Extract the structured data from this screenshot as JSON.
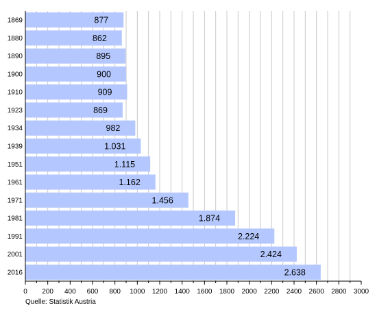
{
  "chart_data": {
    "type": "bar",
    "orientation": "horizontal",
    "categories": [
      "1869",
      "1880",
      "1890",
      "1900",
      "1910",
      "1923",
      "1934",
      "1939",
      "1951",
      "1961",
      "1971",
      "1981",
      "1991",
      "2001",
      "2016"
    ],
    "values": [
      877,
      862,
      895,
      900,
      909,
      869,
      982,
      1031,
      1115,
      1162,
      1456,
      1874,
      2224,
      2424,
      2638
    ],
    "value_labels": [
      "877",
      "862",
      "895",
      "900",
      "909",
      "869",
      "982",
      "1.031",
      "1.115",
      "1.162",
      "1.456",
      "1.874",
      "2.224",
      "2.424",
      "2.638"
    ],
    "xlim": [
      0,
      3000
    ],
    "x_ticks": [
      0,
      200,
      400,
      600,
      800,
      1000,
      1200,
      1400,
      1600,
      1800,
      2000,
      2200,
      2400,
      2600,
      2800,
      3000
    ],
    "x_minor_step": 100,
    "grid": true,
    "bar_color": "#b4c8ff",
    "grid_color": "#c8c8c8",
    "source": "Quelle: Statistik Austria"
  }
}
